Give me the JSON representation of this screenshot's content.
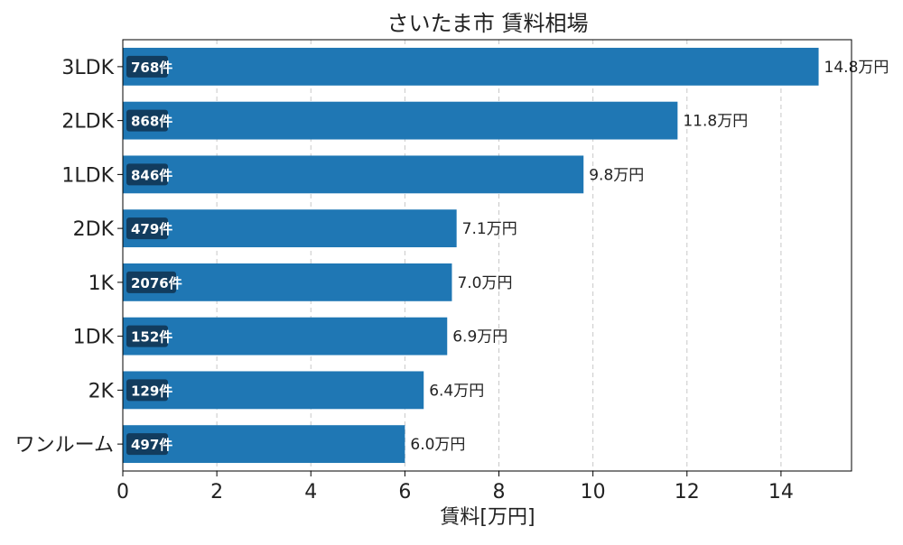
{
  "chart_data": {
    "type": "bar",
    "orientation": "horizontal",
    "title": "さいたま市 賃料相場",
    "xlabel": "賃料[万円]",
    "ylabel": "",
    "xlim": [
      0,
      15.5
    ],
    "xticks": [
      0,
      2,
      4,
      6,
      8,
      10,
      12,
      14
    ],
    "grid": "vertical-dashed",
    "bar_color": "#1f77b4",
    "count_badge_color": "#123c5e",
    "categories": [
      "3LDK",
      "2LDK",
      "1LDK",
      "2DK",
      "1K",
      "1DK",
      "2K",
      "ワンルーム"
    ],
    "values": [
      14.8,
      11.8,
      9.8,
      7.1,
      7.0,
      6.9,
      6.4,
      6.0
    ],
    "value_labels": [
      "14.8万円",
      "11.8万円",
      "9.8万円",
      "7.1万円",
      "7.0万円",
      "6.9万円",
      "6.4万円",
      "6.0万円"
    ],
    "count_labels": [
      "768件",
      "868件",
      "846件",
      "479件",
      "2076件",
      "152件",
      "129件",
      "497件"
    ]
  }
}
